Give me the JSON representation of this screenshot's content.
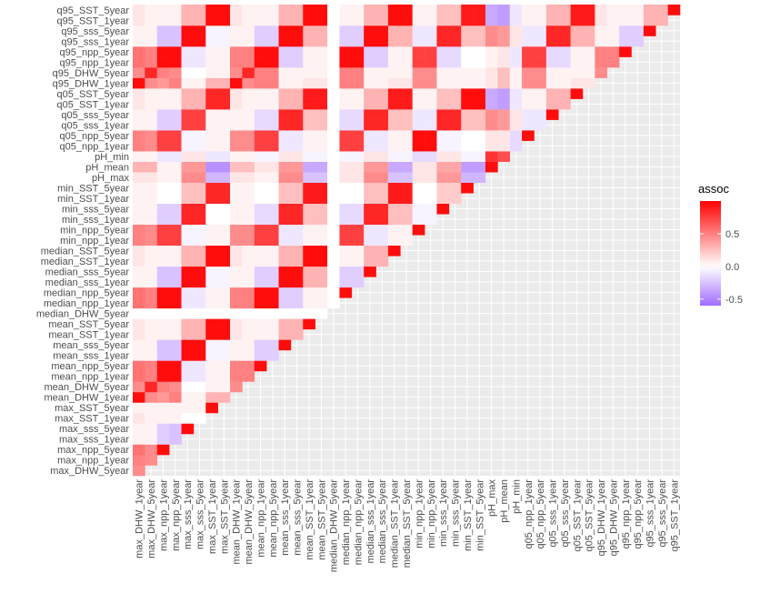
{
  "chart_data": {
    "type": "heatmap",
    "title": "",
    "xlabel": "",
    "ylabel": "",
    "x": [
      "max_DHW_1year",
      "max_DHW_5year",
      "max_npp_1year",
      "max_npp_5year",
      "max_sss_1year",
      "max_sss_5year",
      "max_SST_1year",
      "max_SST_5year",
      "mean_DHW_1year",
      "mean_DHW_5year",
      "mean_npp_1year",
      "mean_npp_5year",
      "mean_sss_1year",
      "mean_sss_5year",
      "mean_SST_1year",
      "mean_SST_5year",
      "median_DHW_5year",
      "median_npp_1year",
      "median_npp_5year",
      "median_sss_1year",
      "median_sss_5year",
      "median_SST_1year",
      "median_SST_5year",
      "min_npp_1year",
      "min_npp_5year",
      "min_sss_1year",
      "min_sss_5year",
      "min_SST_1year",
      "min_SST_5year",
      "pH_max",
      "pH_mean",
      "pH_min",
      "q05_npp_1year",
      "q05_npp_5year",
      "q05_sss_1year",
      "q05_sss_5year",
      "q05_SST_1year",
      "q05_SST_5year",
      "q95_DHW_1year",
      "q95_DHW_5year",
      "q95_npp_1year",
      "q95_npp_5year",
      "q95_sss_1year",
      "q95_sss_5year",
      "q95_SST_1year"
    ],
    "y": [
      "max_DHW_5year",
      "max_npp_1year",
      "max_npp_5year",
      "max_sss_1year",
      "max_sss_5year",
      "max_SST_1year",
      "max_SST_5year",
      "mean_DHW_1year",
      "mean_DHW_5year",
      "mean_npp_1year",
      "mean_npp_5year",
      "mean_sss_1year",
      "mean_sss_5year",
      "mean_SST_1year",
      "mean_SST_5year",
      "median_DHW_5year",
      "median_npp_1year",
      "median_npp_5year",
      "median_sss_1year",
      "median_sss_5year",
      "median_SST_1year",
      "median_SST_5year",
      "min_npp_1year",
      "min_npp_5year",
      "min_sss_1year",
      "min_sss_5year",
      "min_SST_1year",
      "min_SST_5year",
      "pH_max",
      "pH_mean",
      "pH_min",
      "q05_npp_1year",
      "q05_npp_5year",
      "q05_sss_1year",
      "q05_sss_5year",
      "q05_SST_1year",
      "q05_SST_5year",
      "q95_DHW_1year",
      "q95_DHW_5year",
      "q95_npp_1year",
      "q95_npp_5year",
      "q95_sss_1year",
      "q95_sss_5year",
      "q95_SST_1year",
      "q95_SST_5year"
    ],
    "triangle": "lower-left: row i (bottom-up) has cells for columns 0..i",
    "values": [
      [
        0.45
      ],
      [
        0.5,
        0.45
      ],
      [
        0.55,
        0.45,
        0.95
      ],
      [
        0.05,
        0.05,
        -0.2,
        -0.25
      ],
      [
        0.05,
        0.05,
        -0.2,
        -0.25,
        0.95
      ],
      [
        0.1,
        0.05,
        0.05,
        0.05,
        0.0,
        0.0
      ],
      [
        0.05,
        0.05,
        0.05,
        0.05,
        0.05,
        0.05,
        0.95
      ],
      [
        0.95,
        0.45,
        0.4,
        0.5,
        0.05,
        0.05,
        0.3,
        0.3
      ],
      [
        0.45,
        0.85,
        0.5,
        0.45,
        0.0,
        0.0,
        0.05,
        0.05,
        0.45
      ],
      [
        0.55,
        0.5,
        0.95,
        0.95,
        -0.1,
        -0.1,
        0.05,
        0.05,
        0.5,
        0.5
      ],
      [
        0.55,
        0.5,
        0.95,
        0.95,
        -0.1,
        -0.1,
        0.05,
        0.05,
        0.5,
        0.5,
        0.95
      ],
      [
        0.05,
        0.05,
        -0.25,
        -0.25,
        0.95,
        0.95,
        -0.05,
        -0.05,
        0.05,
        0.05,
        -0.2,
        -0.2
      ],
      [
        0.05,
        0.05,
        -0.25,
        -0.25,
        0.95,
        0.95,
        -0.05,
        -0.05,
        0.05,
        0.05,
        -0.2,
        -0.2,
        0.95
      ],
      [
        0.1,
        0.05,
        0.05,
        0.05,
        0.3,
        0.3,
        0.95,
        0.95,
        0.1,
        0.05,
        0.05,
        0.05,
        0.3,
        0.3
      ],
      [
        0.1,
        0.05,
        0.05,
        0.05,
        0.3,
        0.3,
        0.95,
        0.95,
        0.1,
        0.05,
        0.05,
        0.05,
        0.3,
        0.3,
        0.95
      ],
      [
        0.0,
        0.0,
        0.0,
        0.0,
        0.0,
        0.0,
        0.0,
        0.0,
        0.0,
        0.0,
        0.0,
        0.0,
        0.0,
        0.0,
        0.0,
        0.0
      ],
      [
        0.55,
        0.5,
        0.95,
        0.95,
        -0.1,
        -0.1,
        0.05,
        0.05,
        0.5,
        0.5,
        0.95,
        0.95,
        -0.2,
        -0.2,
        0.05,
        0.05,
        0.0
      ],
      [
        0.55,
        0.5,
        0.95,
        0.95,
        -0.1,
        -0.1,
        0.05,
        0.05,
        0.5,
        0.5,
        0.95,
        0.95,
        -0.2,
        -0.2,
        0.05,
        0.05,
        0.0,
        0.95
      ],
      [
        0.05,
        0.05,
        -0.25,
        -0.25,
        0.95,
        0.95,
        -0.05,
        -0.05,
        0.05,
        0.05,
        -0.2,
        -0.2,
        0.95,
        0.95,
        0.3,
        0.3,
        0.0,
        -0.2,
        -0.2
      ],
      [
        0.05,
        0.05,
        -0.25,
        -0.25,
        0.95,
        0.95,
        -0.05,
        -0.05,
        0.05,
        0.05,
        -0.2,
        -0.2,
        0.95,
        0.95,
        0.3,
        0.3,
        0.0,
        -0.2,
        -0.2,
        0.95
      ],
      [
        0.1,
        0.05,
        0.05,
        0.05,
        0.3,
        0.3,
        0.95,
        0.95,
        0.1,
        0.05,
        0.05,
        0.05,
        0.3,
        0.3,
        0.95,
        0.95,
        0.0,
        0.05,
        0.05,
        0.3,
        0.3
      ],
      [
        0.1,
        0.05,
        0.05,
        0.05,
        0.3,
        0.3,
        0.95,
        0.95,
        0.1,
        0.05,
        0.05,
        0.05,
        0.3,
        0.3,
        0.95,
        0.95,
        0.0,
        0.05,
        0.05,
        0.3,
        0.3,
        0.95
      ],
      [
        0.5,
        0.45,
        0.75,
        0.75,
        -0.05,
        -0.05,
        0.05,
        0.05,
        0.45,
        0.45,
        0.75,
        0.75,
        -0.1,
        -0.1,
        0.05,
        0.05,
        0.0,
        0.75,
        0.75,
        -0.1,
        -0.1,
        0.05,
        0.05
      ],
      [
        0.5,
        0.45,
        0.75,
        0.75,
        -0.05,
        -0.05,
        0.05,
        0.05,
        0.45,
        0.45,
        0.75,
        0.75,
        -0.1,
        -0.1,
        0.05,
        0.05,
        0.0,
        0.75,
        0.75,
        -0.1,
        -0.1,
        0.05,
        0.05,
        0.95
      ],
      [
        0.05,
        0.05,
        -0.2,
        -0.2,
        0.85,
        0.85,
        0.0,
        0.0,
        0.05,
        0.05,
        -0.15,
        -0.15,
        0.85,
        0.85,
        0.25,
        0.25,
        0.0,
        -0.15,
        -0.15,
        0.85,
        0.85,
        0.25,
        0.25,
        -0.05,
        -0.05
      ],
      [
        0.05,
        0.05,
        -0.2,
        -0.2,
        0.85,
        0.85,
        0.0,
        0.0,
        0.05,
        0.05,
        -0.15,
        -0.15,
        0.85,
        0.85,
        0.25,
        0.25,
        0.0,
        -0.15,
        -0.15,
        0.85,
        0.85,
        0.25,
        0.25,
        -0.05,
        -0.05,
        0.95
      ],
      [
        0.05,
        0.05,
        0.0,
        0.0,
        0.25,
        0.25,
        0.85,
        0.85,
        0.05,
        0.05,
        0.0,
        0.0,
        0.25,
        0.25,
        0.9,
        0.9,
        0.0,
        0.0,
        0.0,
        0.25,
        0.25,
        0.9,
        0.9,
        0.0,
        0.0,
        0.2,
        0.2
      ],
      [
        0.05,
        0.05,
        0.0,
        0.0,
        0.25,
        0.25,
        0.85,
        0.85,
        0.05,
        0.05,
        0.0,
        0.0,
        0.25,
        0.25,
        0.9,
        0.9,
        0.0,
        0.0,
        0.0,
        0.25,
        0.25,
        0.9,
        0.9,
        0.0,
        0.0,
        0.2,
        0.2,
        0.95
      ],
      [
        0.1,
        0.1,
        0.05,
        0.05,
        0.45,
        0.45,
        -0.3,
        -0.3,
        0.1,
        0.1,
        0.05,
        0.05,
        0.45,
        0.45,
        -0.25,
        -0.25,
        0.0,
        0.1,
        0.1,
        0.45,
        0.45,
        -0.25,
        -0.25,
        0.1,
        0.1,
        0.4,
        0.4,
        -0.3,
        -0.3
      ],
      [
        0.3,
        0.3,
        0.05,
        0.05,
        0.4,
        0.4,
        -0.45,
        -0.45,
        0.25,
        0.25,
        0.1,
        0.1,
        0.4,
        0.4,
        -0.35,
        -0.35,
        0.0,
        0.1,
        0.1,
        0.4,
        0.4,
        -0.35,
        -0.35,
        0.1,
        0.1,
        0.35,
        0.35,
        -0.4,
        -0.4,
        0.95
      ],
      [
        0.05,
        0.05,
        -0.1,
        -0.1,
        0.1,
        0.1,
        -0.1,
        -0.1,
        0.05,
        0.05,
        -0.05,
        -0.05,
        0.1,
        0.1,
        -0.05,
        -0.05,
        0.0,
        -0.05,
        -0.05,
        0.1,
        0.1,
        -0.05,
        -0.05,
        -0.15,
        -0.15,
        0.1,
        0.1,
        -0.05,
        -0.05,
        0.8,
        0.7
      ],
      [
        0.5,
        0.45,
        0.75,
        0.75,
        -0.05,
        -0.05,
        0.05,
        0.05,
        0.45,
        0.45,
        0.75,
        0.75,
        -0.1,
        -0.1,
        0.05,
        0.05,
        0.0,
        0.75,
        0.75,
        -0.1,
        -0.1,
        0.05,
        0.05,
        0.95,
        0.95,
        -0.05,
        -0.05,
        0.0,
        0.0,
        0.1,
        0.1,
        -0.15
      ],
      [
        0.5,
        0.45,
        0.75,
        0.75,
        -0.05,
        -0.05,
        0.05,
        0.05,
        0.45,
        0.45,
        0.75,
        0.75,
        -0.1,
        -0.1,
        0.05,
        0.05,
        0.0,
        0.75,
        0.75,
        -0.1,
        -0.1,
        0.05,
        0.05,
        0.95,
        0.95,
        -0.05,
        -0.05,
        0.0,
        0.0,
        0.1,
        0.1,
        -0.15,
        0.95
      ],
      [
        0.05,
        0.05,
        -0.2,
        -0.2,
        0.75,
        0.75,
        0.05,
        0.05,
        0.05,
        0.05,
        -0.15,
        -0.15,
        0.85,
        0.85,
        0.25,
        0.25,
        0.0,
        -0.15,
        -0.15,
        0.85,
        0.85,
        0.25,
        0.25,
        -0.1,
        -0.1,
        0.85,
        0.85,
        0.25,
        0.25,
        0.45,
        0.4,
        0.1,
        -0.1,
        -0.1
      ],
      [
        0.05,
        0.05,
        -0.2,
        -0.2,
        0.75,
        0.75,
        0.05,
        0.05,
        0.05,
        0.05,
        -0.15,
        -0.15,
        0.85,
        0.85,
        0.25,
        0.25,
        0.0,
        -0.15,
        -0.15,
        0.85,
        0.85,
        0.25,
        0.25,
        -0.1,
        -0.1,
        0.85,
        0.85,
        0.25,
        0.25,
        0.45,
        0.4,
        0.1,
        -0.1,
        -0.1,
        0.95
      ],
      [
        0.1,
        0.05,
        0.05,
        0.05,
        0.3,
        0.3,
        0.85,
        0.85,
        0.1,
        0.05,
        0.05,
        0.05,
        0.3,
        0.3,
        0.9,
        0.9,
        0.0,
        0.05,
        0.05,
        0.3,
        0.3,
        0.9,
        0.9,
        0.05,
        0.05,
        0.25,
        0.25,
        0.95,
        0.95,
        -0.35,
        -0.4,
        -0.1,
        0.05,
        0.05,
        0.3,
        0.3
      ],
      [
        0.1,
        0.05,
        0.05,
        0.05,
        0.3,
        0.3,
        0.85,
        0.85,
        0.1,
        0.05,
        0.05,
        0.05,
        0.3,
        0.3,
        0.9,
        0.9,
        0.0,
        0.05,
        0.05,
        0.3,
        0.3,
        0.9,
        0.9,
        0.05,
        0.05,
        0.25,
        0.25,
        0.95,
        0.95,
        -0.35,
        -0.4,
        -0.1,
        0.05,
        0.05,
        0.3,
        0.3,
        0.95
      ],
      [
        0.95,
        0.45,
        0.4,
        0.5,
        0.05,
        0.05,
        0.3,
        0.3,
        0.95,
        0.45,
        0.5,
        0.5,
        0.05,
        0.05,
        0.1,
        0.1,
        0.0,
        0.5,
        0.5,
        0.05,
        0.05,
        0.1,
        0.1,
        0.45,
        0.45,
        0.05,
        0.05,
        0.05,
        0.05,
        0.1,
        0.25,
        0.05,
        0.45,
        0.45,
        0.05,
        0.05,
        0.1,
        0.1
      ],
      [
        0.45,
        0.85,
        0.5,
        0.45,
        0.0,
        0.0,
        0.05,
        0.05,
        0.45,
        0.85,
        0.5,
        0.5,
        0.05,
        0.05,
        0.05,
        0.05,
        0.0,
        0.5,
        0.5,
        0.05,
        0.05,
        0.05,
        0.05,
        0.45,
        0.45,
        0.05,
        0.05,
        0.05,
        0.05,
        0.1,
        0.25,
        0.05,
        0.45,
        0.45,
        0.05,
        0.05,
        0.05,
        0.05,
        0.45
      ],
      [
        0.55,
        0.5,
        0.95,
        0.95,
        -0.1,
        -0.1,
        0.05,
        0.05,
        0.5,
        0.5,
        0.95,
        0.95,
        -0.2,
        -0.2,
        0.05,
        0.05,
        0.0,
        0.95,
        0.95,
        -0.2,
        -0.2,
        0.05,
        0.05,
        0.75,
        0.75,
        -0.15,
        -0.15,
        0.0,
        0.0,
        0.05,
        0.1,
        -0.1,
        0.75,
        0.75,
        -0.15,
        -0.15,
        0.05,
        0.05,
        0.5,
        0.5
      ],
      [
        0.55,
        0.5,
        0.95,
        0.95,
        -0.1,
        -0.1,
        0.05,
        0.05,
        0.5,
        0.5,
        0.95,
        0.95,
        -0.2,
        -0.2,
        0.05,
        0.05,
        0.0,
        0.95,
        0.95,
        -0.2,
        -0.2,
        0.05,
        0.05,
        0.75,
        0.75,
        -0.15,
        -0.15,
        0.0,
        0.0,
        0.05,
        0.1,
        -0.1,
        0.75,
        0.75,
        -0.15,
        -0.15,
        0.05,
        0.05,
        0.5,
        0.5,
        0.95
      ],
      [
        0.05,
        0.05,
        -0.25,
        -0.25,
        0.95,
        0.95,
        -0.05,
        -0.05,
        0.05,
        0.05,
        -0.2,
        -0.2,
        0.95,
        0.95,
        0.3,
        0.3,
        0.0,
        -0.2,
        -0.2,
        0.95,
        0.95,
        0.3,
        0.3,
        -0.1,
        -0.1,
        0.85,
        0.85,
        0.25,
        0.25,
        0.45,
        0.4,
        0.1,
        -0.1,
        -0.1,
        0.85,
        0.85,
        0.3,
        0.3,
        0.05,
        0.05,
        -0.2,
        -0.2
      ],
      [
        0.05,
        0.05,
        -0.25,
        -0.25,
        0.95,
        0.95,
        -0.05,
        -0.05,
        0.05,
        0.05,
        -0.2,
        -0.2,
        0.95,
        0.95,
        0.3,
        0.3,
        0.0,
        -0.2,
        -0.2,
        0.95,
        0.95,
        0.3,
        0.3,
        -0.1,
        -0.1,
        0.85,
        0.85,
        0.25,
        0.25,
        0.45,
        0.4,
        0.1,
        -0.1,
        -0.1,
        0.85,
        0.85,
        0.3,
        0.3,
        0.05,
        0.05,
        -0.2,
        -0.2,
        0.95
      ],
      [
        0.1,
        0.05,
        0.05,
        0.05,
        0.3,
        0.3,
        0.95,
        0.95,
        0.1,
        0.05,
        0.05,
        0.05,
        0.3,
        0.3,
        0.95,
        0.95,
        0.0,
        0.05,
        0.05,
        0.3,
        0.3,
        0.95,
        0.95,
        0.05,
        0.05,
        0.25,
        0.25,
        0.9,
        0.9,
        -0.35,
        -0.4,
        -0.1,
        0.05,
        0.05,
        0.3,
        0.3,
        0.9,
        0.9,
        0.1,
        0.05,
        0.05,
        0.05,
        0.3,
        0.3
      ],
      [
        0.1,
        0.05,
        0.05,
        0.05,
        0.3,
        0.3,
        0.95,
        0.95,
        0.1,
        0.05,
        0.05,
        0.05,
        0.3,
        0.3,
        0.95,
        0.95,
        0.0,
        0.05,
        0.05,
        0.3,
        0.3,
        0.95,
        0.95,
        0.05,
        0.05,
        0.25,
        0.25,
        0.9,
        0.9,
        -0.35,
        -0.4,
        -0.1,
        0.05,
        0.05,
        0.3,
        0.3,
        0.9,
        0.9,
        0.1,
        0.05,
        0.05,
        0.05,
        0.3,
        0.3,
        0.95
      ]
    ],
    "legend": {
      "title": "assoc",
      "position": "right",
      "ticks": [
        0.5,
        0.0,
        -0.5
      ],
      "tick_labels": [
        "0.5",
        "0.0",
        "-0.5"
      ],
      "range": [
        -0.6,
        1.0
      ],
      "colors": {
        "low": "#a16cff",
        "mid": "#ffffff",
        "high": "#ff0000"
      }
    },
    "panel_background": "#ebebeb",
    "grid": true
  }
}
